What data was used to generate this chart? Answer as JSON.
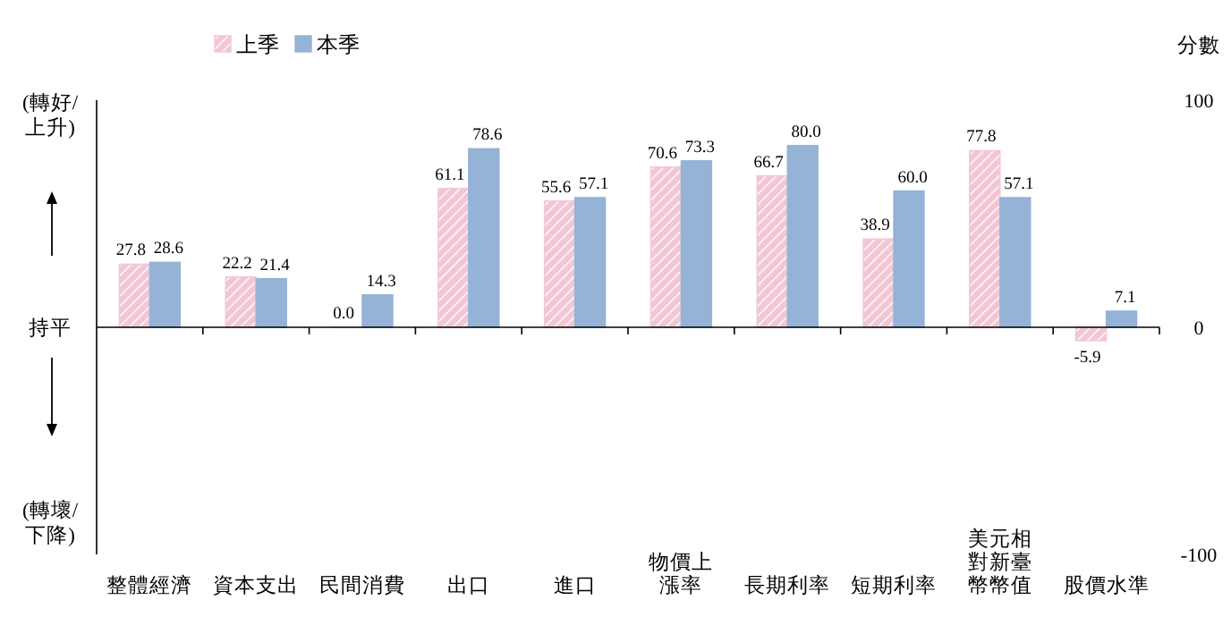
{
  "chart_data": {
    "type": "bar",
    "ylabel": "分數",
    "legend": "top left",
    "categories": [
      "整體經濟",
      "資本支出",
      "民間消費",
      "出口",
      "進口",
      "物價上漲率",
      "長期利率",
      "短期利率",
      "美元相對新臺幣幣值",
      "股價水準"
    ],
    "series": [
      {
        "name": "上季",
        "color": "#f2c6d5",
        "values": [
          27.8,
          22.2,
          0.0,
          61.1,
          55.6,
          70.6,
          66.7,
          38.9,
          77.8,
          -5.9
        ],
        "value_labels": [
          "27.8",
          "22.2",
          "0.0",
          "61.1",
          "55.6",
          "70.6",
          "66.7",
          "38.9",
          "77.8",
          "-5.9"
        ]
      },
      {
        "name": "本季",
        "color": "#95b3d7",
        "values": [
          28.6,
          21.4,
          14.3,
          78.6,
          57.1,
          73.3,
          80.0,
          60.0,
          57.1,
          7.1
        ],
        "value_labels": [
          "28.6",
          "21.4",
          "14.3",
          "78.6",
          "57.1",
          "73.3",
          "80.0",
          "60.0",
          "57.1",
          "7.1"
        ]
      }
    ],
    "ylim": [
      -100,
      100
    ],
    "yticks": [
      -100,
      0,
      100
    ],
    "annotations": [
      "(轉好/\n上升)",
      "持平",
      "(轉壞/\n下降)"
    ]
  }
}
